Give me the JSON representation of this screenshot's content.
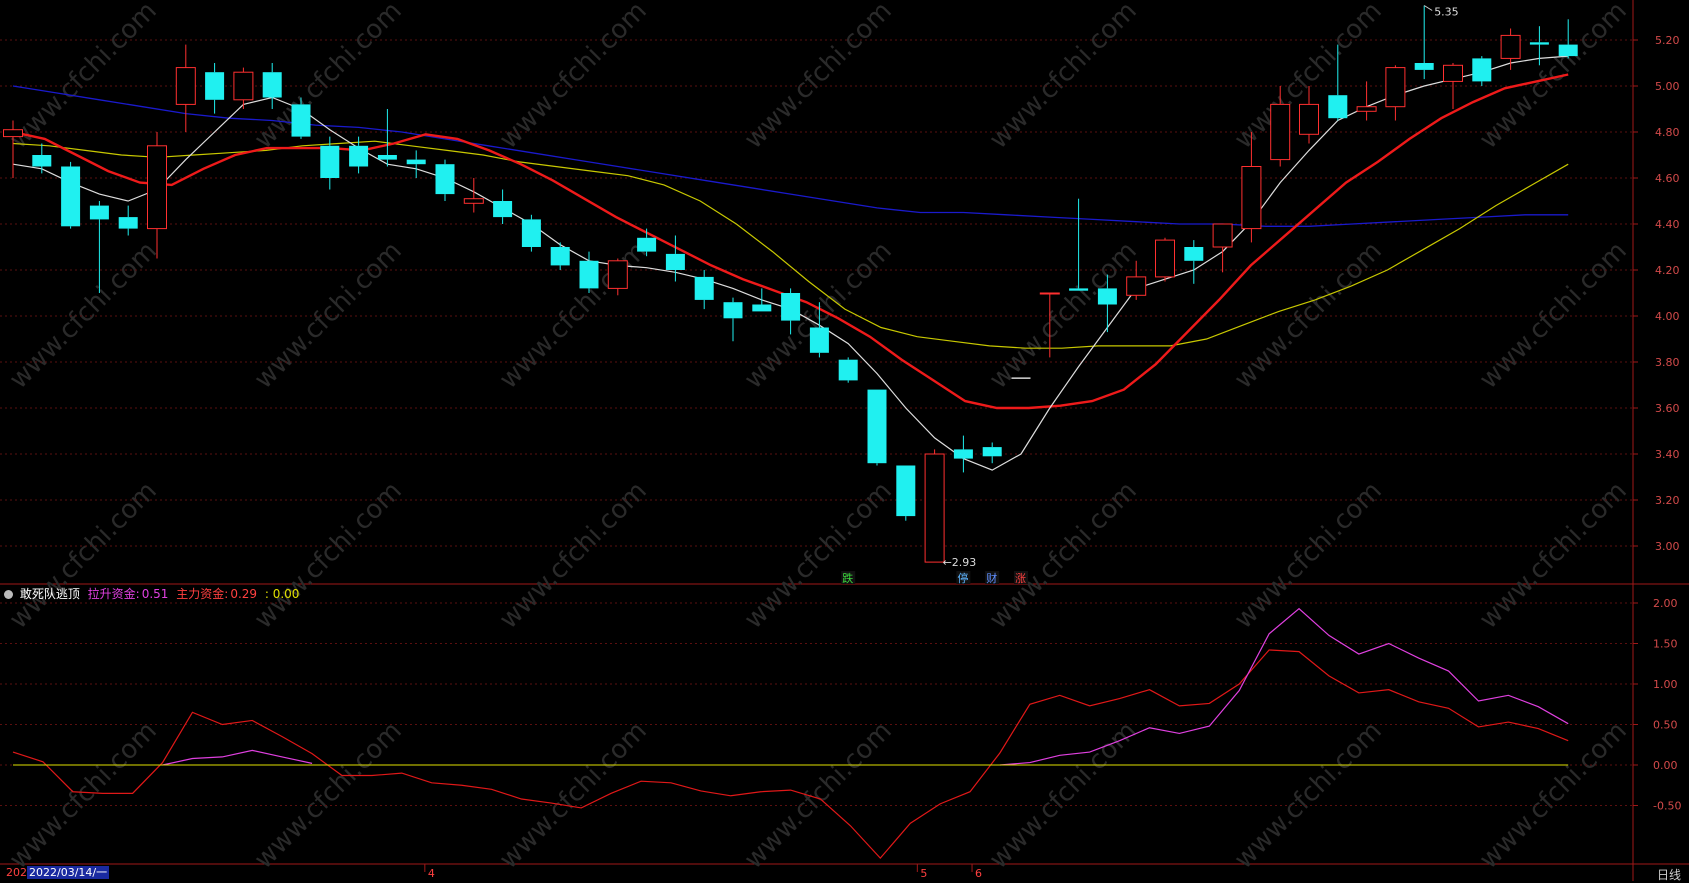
{
  "chart_data": [
    {
      "type": "candlestick",
      "price_axis": {
        "ticks": [
          "5.20",
          "5.00",
          "4.80",
          "4.60",
          "4.40",
          "4.20",
          "4.00",
          "3.80",
          "3.60",
          "3.40",
          "3.20",
          "3.00"
        ],
        "range": [
          2.82,
          5.42
        ]
      },
      "candles": [
        {
          "o": 4.78,
          "h": 4.85,
          "l": 4.6,
          "c": 4.81
        },
        {
          "o": 4.7,
          "h": 4.75,
          "l": 4.62,
          "c": 4.65
        },
        {
          "o": 4.65,
          "h": 4.67,
          "l": 4.38,
          "c": 4.39
        },
        {
          "o": 4.48,
          "h": 4.5,
          "l": 4.1,
          "c": 4.42
        },
        {
          "o": 4.43,
          "h": 4.48,
          "l": 4.35,
          "c": 4.38
        },
        {
          "o": 4.38,
          "h": 4.8,
          "l": 4.25,
          "c": 4.74
        },
        {
          "o": 4.92,
          "h": 5.18,
          "l": 4.8,
          "c": 5.08
        },
        {
          "o": 5.06,
          "h": 5.1,
          "l": 4.88,
          "c": 4.94
        },
        {
          "o": 4.94,
          "h": 5.08,
          "l": 4.9,
          "c": 5.06
        },
        {
          "o": 5.06,
          "h": 5.1,
          "l": 4.9,
          "c": 4.95
        },
        {
          "o": 4.92,
          "h": 4.95,
          "l": 4.77,
          "c": 4.78
        },
        {
          "o": 4.74,
          "h": 4.78,
          "l": 4.55,
          "c": 4.6
        },
        {
          "o": 4.74,
          "h": 4.78,
          "l": 4.62,
          "c": 4.65
        },
        {
          "o": 4.7,
          "h": 4.9,
          "l": 4.65,
          "c": 4.68
        },
        {
          "o": 4.68,
          "h": 4.72,
          "l": 4.6,
          "c": 4.66
        },
        {
          "o": 4.66,
          "h": 4.68,
          "l": 4.5,
          "c": 4.53
        },
        {
          "o": 4.49,
          "h": 4.6,
          "l": 4.45,
          "c": 4.51
        },
        {
          "o": 4.5,
          "h": 4.55,
          "l": 4.4,
          "c": 4.43
        },
        {
          "o": 4.42,
          "h": 4.44,
          "l": 4.28,
          "c": 4.3
        },
        {
          "o": 4.3,
          "h": 4.32,
          "l": 4.2,
          "c": 4.22
        },
        {
          "o": 4.24,
          "h": 4.28,
          "l": 4.1,
          "c": 4.12
        },
        {
          "o": 4.12,
          "h": 4.25,
          "l": 4.09,
          "c": 4.24
        },
        {
          "o": 4.34,
          "h": 4.38,
          "l": 4.26,
          "c": 4.28
        },
        {
          "o": 4.27,
          "h": 4.35,
          "l": 4.15,
          "c": 4.2
        },
        {
          "o": 4.17,
          "h": 4.2,
          "l": 4.03,
          "c": 4.07
        },
        {
          "o": 4.06,
          "h": 4.08,
          "l": 3.89,
          "c": 3.99
        },
        {
          "o": 4.05,
          "h": 4.12,
          "l": 4.02,
          "c": 4.02
        },
        {
          "o": 4.1,
          "h": 4.12,
          "l": 3.92,
          "c": 3.98
        },
        {
          "o": 3.95,
          "h": 4.06,
          "l": 3.82,
          "c": 3.84
        },
        {
          "o": 3.81,
          "h": 3.82,
          "l": 3.71,
          "c": 3.72
        },
        {
          "o": 3.68,
          "h": 3.68,
          "l": 3.35,
          "c": 3.36
        },
        {
          "o": 3.35,
          "h": 3.35,
          "l": 3.11,
          "c": 3.13
        },
        {
          "o": 2.93,
          "h": 3.42,
          "l": 2.93,
          "c": 3.4
        },
        {
          "o": 3.42,
          "h": 3.48,
          "l": 3.32,
          "c": 3.38
        },
        {
          "o": 3.43,
          "h": 3.45,
          "l": 3.36,
          "c": 3.39
        },
        {
          "o": 3.73,
          "h": 3.73,
          "l": 3.73,
          "c": 3.73
        },
        {
          "o": 4.1,
          "h": 4.1,
          "l": 3.82,
          "c": 4.1
        },
        {
          "o": 4.12,
          "h": 4.51,
          "l": 4.11,
          "c": 4.11
        },
        {
          "o": 4.12,
          "h": 4.18,
          "l": 3.93,
          "c": 4.05
        },
        {
          "o": 4.09,
          "h": 4.24,
          "l": 4.07,
          "c": 4.17
        },
        {
          "o": 4.17,
          "h": 4.34,
          "l": 4.15,
          "c": 4.33
        },
        {
          "o": 4.3,
          "h": 4.33,
          "l": 4.14,
          "c": 4.24
        },
        {
          "o": 4.3,
          "h": 4.4,
          "l": 4.19,
          "c": 4.4
        },
        {
          "o": 4.38,
          "h": 4.8,
          "l": 4.32,
          "c": 4.65
        },
        {
          "o": 4.68,
          "h": 5.0,
          "l": 4.65,
          "c": 4.92
        },
        {
          "o": 4.79,
          "h": 5.0,
          "l": 4.75,
          "c": 4.92
        },
        {
          "o": 4.96,
          "h": 5.18,
          "l": 4.85,
          "c": 4.86
        },
        {
          "o": 4.89,
          "h": 5.02,
          "l": 4.85,
          "c": 4.91
        },
        {
          "o": 4.91,
          "h": 5.09,
          "l": 4.85,
          "c": 5.08
        },
        {
          "o": 5.1,
          "h": 5.35,
          "l": 5.03,
          "c": 5.07
        },
        {
          "o": 5.02,
          "h": 5.1,
          "l": 4.9,
          "c": 5.09
        },
        {
          "o": 5.12,
          "h": 5.13,
          "l": 5.0,
          "c": 5.02
        },
        {
          "o": 5.12,
          "h": 5.25,
          "l": 5.07,
          "c": 5.22
        },
        {
          "o": 5.19,
          "h": 5.26,
          "l": 5.09,
          "c": 5.18
        },
        {
          "o": 5.18,
          "h": 5.29,
          "l": 5.12,
          "c": 5.13
        }
      ],
      "ma_white": [
        4.66,
        4.64,
        4.58,
        4.53,
        4.5,
        4.55,
        4.68,
        4.8,
        4.92,
        4.95,
        4.9,
        4.81,
        4.73,
        4.66,
        4.64,
        4.6,
        4.54,
        4.47,
        4.4,
        4.31,
        4.24,
        4.22,
        4.21,
        4.19,
        4.16,
        4.12,
        4.07,
        4.03,
        3.96,
        3.88,
        3.75,
        3.6,
        3.47,
        3.38,
        3.33,
        3.4,
        3.6,
        3.78,
        3.95,
        4.12,
        4.16,
        4.2,
        4.28,
        4.41,
        4.58,
        4.72,
        4.85,
        4.91,
        4.96,
        5.0,
        5.03,
        5.06,
        5.1,
        5.12,
        5.13
      ],
      "ma_red": [
        4.8,
        4.77,
        4.7,
        4.63,
        4.58,
        4.57,
        4.64,
        4.7,
        4.73,
        4.73,
        4.73,
        4.72,
        4.75,
        4.79,
        4.77,
        4.72,
        4.66,
        4.59,
        4.51,
        4.43,
        4.36,
        4.29,
        4.22,
        4.16,
        4.11,
        4.06,
        3.99,
        3.91,
        3.81,
        3.72,
        3.63,
        3.6,
        3.6,
        3.61,
        3.63,
        3.68,
        3.79,
        3.93,
        4.07,
        4.22,
        4.34,
        4.46,
        4.58,
        4.67,
        4.77,
        4.86,
        4.93,
        4.99,
        5.02,
        5.05
      ],
      "ma_yellow": [
        4.75,
        4.74,
        4.72,
        4.7,
        4.69,
        4.7,
        4.71,
        4.72,
        4.74,
        4.75,
        4.76,
        4.74,
        4.72,
        4.7,
        4.67,
        4.65,
        4.63,
        4.61,
        4.57,
        4.5,
        4.4,
        4.28,
        4.15,
        4.03,
        3.95,
        3.91,
        3.89,
        3.87,
        3.86,
        3.86,
        3.87,
        3.87,
        3.87,
        3.9,
        3.96,
        4.02,
        4.07,
        4.13,
        4.2,
        4.29,
        4.38,
        4.48,
        4.57,
        4.66
      ],
      "ma_blue": [
        5.0,
        4.97,
        4.94,
        4.91,
        4.88,
        4.86,
        4.85,
        4.83,
        4.82,
        4.8,
        4.77,
        4.74,
        4.71,
        4.68,
        4.65,
        4.62,
        4.59,
        4.56,
        4.53,
        4.5,
        4.47,
        4.45,
        4.45,
        4.44,
        4.43,
        4.42,
        4.41,
        4.4,
        4.4,
        4.39,
        4.39,
        4.4,
        4.41,
        4.42,
        4.43,
        4.44,
        4.44
      ],
      "annotations": {
        "high_label": "5.35",
        "low_label": "2.93"
      },
      "markers": [
        {
          "text": "跌",
          "color": "#3ddc3d",
          "index": 29
        },
        {
          "text": "停",
          "color": "#5fb5ff",
          "index": 33
        },
        {
          "text": "财",
          "color": "#5f8fff",
          "index": 34
        },
        {
          "text": "涨",
          "color": "#ff4040",
          "index": 35
        }
      ]
    },
    {
      "type": "line",
      "indicator": {
        "name": "敢死队逃顶",
        "s1_label": "拉升资金:",
        "s1_value": "0.51",
        "s2_label": "主力资金:",
        "s2_value": "0.29",
        "s3_value": ": 0.00"
      },
      "y_axis": {
        "ticks": [
          "2.00",
          "1.50",
          "1.00",
          "0.50",
          "0.00",
          "-0.50"
        ],
        "range": [
          -1.2,
          2.15
        ]
      },
      "series": [
        {
          "values": [
            0.16,
            0.04,
            -0.33,
            -0.35,
            -0.35,
            0.03,
            0.65,
            0.5,
            0.55,
            0.35,
            0.14,
            -0.13,
            -0.13,
            -0.1,
            -0.22,
            -0.25,
            -0.3,
            -0.42,
            -0.47,
            -0.53,
            -0.35,
            -0.2,
            -0.22,
            -0.32,
            -0.38,
            -0.33,
            -0.31,
            -0.42,
            -0.75,
            -1.15,
            -0.72,
            -0.48,
            -0.33,
            0.15,
            0.75,
            0.86,
            0.73,
            0.82,
            0.93,
            0.73,
            0.76,
            1.0,
            1.42,
            1.4,
            1.1,
            0.89,
            0.93,
            0.78,
            0.7,
            0.47,
            0.53,
            0.45,
            0.3
          ],
          "color": "#e01818"
        },
        {
          "values": [
            null,
            null,
            null,
            null,
            null,
            0.0,
            0.08,
            0.1,
            0.18,
            0.1,
            0.02,
            null,
            null,
            null,
            null,
            null,
            null,
            null,
            null,
            null,
            null,
            null,
            null,
            null,
            null,
            null,
            null,
            null,
            null,
            null,
            null,
            null,
            null,
            0.0,
            0.03,
            0.12,
            0.16,
            0.3,
            0.46,
            0.39,
            0.48,
            0.92,
            1.62,
            1.93,
            1.6,
            1.37,
            1.5,
            1.32,
            1.16,
            0.79,
            0.86,
            0.72,
            0.51
          ],
          "color": "#e040e0"
        },
        {
          "values": [
            0,
            0
          ],
          "color": "#e0e000"
        }
      ]
    }
  ],
  "date_bar": {
    "prefix": "202",
    "date": "2022/03/14/一",
    "month_ticks": [
      "4",
      "5",
      "6"
    ]
  },
  "period_label": "日线",
  "watermark": "www.cfchi.com"
}
